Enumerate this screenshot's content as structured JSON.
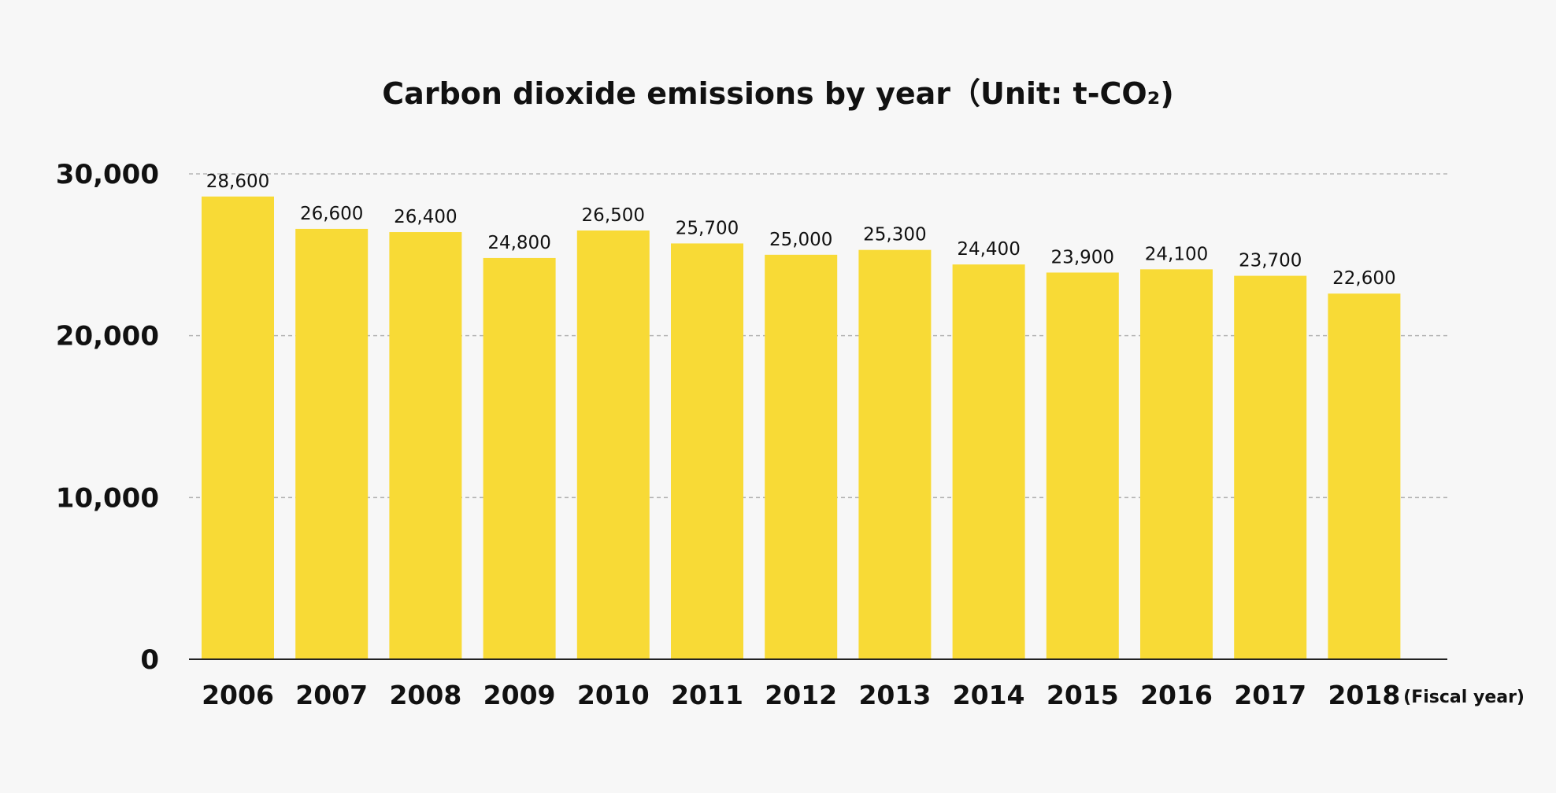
{
  "chart_data": {
    "type": "bar",
    "title": "Carbon dioxide emissions by year（Unit: t-CO₂)",
    "xlabel": "(Fiscal year)",
    "ylabel": "",
    "categories": [
      "2006",
      "2007",
      "2008",
      "2009",
      "2010",
      "2011",
      "2012",
      "2013",
      "2014",
      "2015",
      "2016",
      "2017",
      "2018"
    ],
    "values": [
      28600,
      26600,
      26400,
      24800,
      26500,
      25700,
      25000,
      25300,
      24400,
      23900,
      24100,
      23700,
      22600
    ],
    "value_labels": [
      "28,600",
      "26,600",
      "26,400",
      "24,800",
      "26,500",
      "25,700",
      "25,000",
      "25,300",
      "24,400",
      "23,900",
      "24,100",
      "23,700",
      "22,600"
    ],
    "yticks": [
      0,
      10000,
      20000,
      30000
    ],
    "ytick_labels": [
      "0",
      "10,000",
      "20,000",
      "30,000"
    ],
    "ylim": [
      0,
      30000
    ],
    "grid": true,
    "grid_style": "dashed",
    "legend": "none",
    "colors": {
      "bar": "#f8da36",
      "background": "#f7f7f7",
      "gridline": "#b5b5b5",
      "axis": "#222222",
      "text": "#111111"
    }
  }
}
